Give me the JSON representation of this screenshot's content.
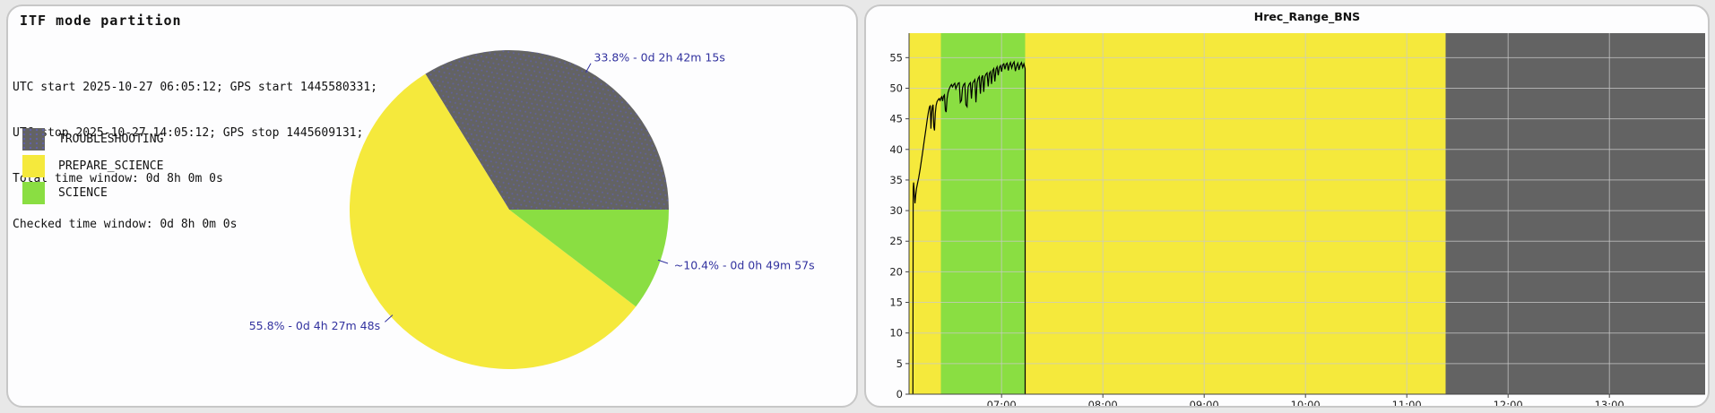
{
  "panels": {
    "left": {
      "title": "ITF mode partition",
      "info_lines": [
        "UTC start 2025-10-27 06:05:12; GPS start 1445580331;",
        "UTC stop 2025-10-27 14:05:12; GPS stop 1445609131;",
        "Total time window: 0d 8h 0m 0s",
        "Checked time window: 0d 8h 0m 0s"
      ]
    },
    "right": {
      "title": "Hrec_Range_BNS"
    }
  },
  "colors": {
    "troubleshooting": "#636363",
    "prepare_science": "#f5e93c",
    "science": "#8ade42",
    "annotation": "#32329f",
    "grid": "rgba(200,200,200,0.75)",
    "line": "#000000"
  },
  "chart_data": [
    {
      "type": "pie",
      "title": "ITF mode partition",
      "start_angle_deg": 0,
      "direction": "counterclockwise",
      "annotation_color": "#32329f",
      "slices": [
        {
          "label": "TROUBLESHOOTING",
          "percent": 33.8,
          "duration": "0d 2h 42m 15s",
          "color": "#636363",
          "hatched": true,
          "annotation": "33.8% - 0d 2h 42m 15s"
        },
        {
          "label": "PREPARE_SCIENCE",
          "percent": 55.8,
          "duration": "0d 4h 27m 48s",
          "color": "#f5e93c",
          "hatched": false,
          "annotation": "55.8% - 0d 4h 27m 48s"
        },
        {
          "label": "SCIENCE",
          "percent": 10.4,
          "duration": "0d 0h 49m 57s",
          "color": "#8ade42",
          "hatched": false,
          "annotation": "~10.4% - 0d 0h 49m 57s"
        }
      ]
    },
    {
      "type": "line",
      "title": "Hrec_Range_BNS",
      "xlabel": "",
      "ylabel": "",
      "xlim_hours": [
        6.0867,
        13.945
      ],
      "ylim": [
        0,
        59
      ],
      "yticks": [
        0,
        5,
        10,
        15,
        20,
        25,
        30,
        35,
        40,
        45,
        50,
        55
      ],
      "xticks": [
        {
          "t": 7,
          "label": "07:00"
        },
        {
          "t": 8,
          "label": "08:00"
        },
        {
          "t": 9,
          "label": "09:00"
        },
        {
          "t": 10,
          "label": "10:00"
        },
        {
          "t": 11,
          "label": "11:00"
        },
        {
          "t": 12,
          "label": "12:00"
        },
        {
          "t": 13,
          "label": "13:00"
        }
      ],
      "grid": true,
      "regions": [
        {
          "mode": "PREPARE_SCIENCE",
          "start": 6.0867,
          "end": 6.401,
          "color": "#f5e93c"
        },
        {
          "mode": "SCIENCE",
          "start": 6.401,
          "end": 7.2325,
          "color": "#8ade42"
        },
        {
          "mode": "PREPARE_SCIENCE",
          "start": 7.2325,
          "end": 11.383,
          "color": "#f5e93c"
        },
        {
          "mode": "TROUBLESHOOTING",
          "start": 11.383,
          "end": 14.0867,
          "color": "#636363"
        }
      ],
      "series": [
        {
          "name": "Hrec_Range_BNS",
          "color": "#000000",
          "points": [
            [
              6.125,
              0
            ],
            [
              6.127,
              33.5
            ],
            [
              6.132,
              34.6
            ],
            [
              6.138,
              33.0
            ],
            [
              6.145,
              31.2
            ],
            [
              6.152,
              32.5
            ],
            [
              6.16,
              33.6
            ],
            [
              6.17,
              34.4
            ],
            [
              6.182,
              35.4
            ],
            [
              6.196,
              36.8
            ],
            [
              6.21,
              38.3
            ],
            [
              6.224,
              39.9
            ],
            [
              6.238,
              41.6
            ],
            [
              6.252,
              43.2
            ],
            [
              6.266,
              44.9
            ],
            [
              6.278,
              46.1
            ],
            [
              6.288,
              46.9
            ],
            [
              6.296,
              47.2
            ],
            [
              6.303,
              43.4
            ],
            [
              6.31,
              45.8
            ],
            [
              6.317,
              47.0
            ],
            [
              6.324,
              47.3
            ],
            [
              6.331,
              43.7
            ],
            [
              6.338,
              43.1
            ],
            [
              6.346,
              45.9
            ],
            [
              6.354,
              47.2
            ],
            [
              6.363,
              47.8
            ],
            [
              6.373,
              48.1
            ],
            [
              6.383,
              48.3
            ],
            [
              6.393,
              48.0
            ],
            [
              6.401,
              48.4
            ],
            [
              6.41,
              48.6
            ],
            [
              6.418,
              47.9
            ],
            [
              6.427,
              48.7
            ],
            [
              6.436,
              48.9
            ],
            [
              6.445,
              46.4
            ],
            [
              6.453,
              46.1
            ],
            [
              6.462,
              48.3
            ],
            [
              6.472,
              49.3
            ],
            [
              6.483,
              49.9
            ],
            [
              6.494,
              50.3
            ],
            [
              6.505,
              50.6
            ],
            [
              6.516,
              50.2
            ],
            [
              6.527,
              50.6
            ],
            [
              6.538,
              50.8
            ],
            [
              6.549,
              49.9
            ],
            [
              6.56,
              50.4
            ],
            [
              6.571,
              50.8
            ],
            [
              6.582,
              50.9
            ],
            [
              6.593,
              47.7
            ],
            [
              6.604,
              48.0
            ],
            [
              6.615,
              50.1
            ],
            [
              6.626,
              50.6
            ],
            [
              6.637,
              50.8
            ],
            [
              6.648,
              47.3
            ],
            [
              6.659,
              47.0
            ],
            [
              6.67,
              50.2
            ],
            [
              6.681,
              50.7
            ],
            [
              6.692,
              50.9
            ],
            [
              6.703,
              48.3
            ],
            [
              6.714,
              50.8
            ],
            [
              6.725,
              51.1
            ],
            [
              6.736,
              51.4
            ],
            [
              6.747,
              47.7
            ],
            [
              6.758,
              50.9
            ],
            [
              6.769,
              51.6
            ],
            [
              6.78,
              51.9
            ],
            [
              6.791,
              49.1
            ],
            [
              6.802,
              51.7
            ],
            [
              6.813,
              52.1
            ],
            [
              6.824,
              49.4
            ],
            [
              6.835,
              51.9
            ],
            [
              6.846,
              52.3
            ],
            [
              6.857,
              52.5
            ],
            [
              6.868,
              50.3
            ],
            [
              6.879,
              52.4
            ],
            [
              6.89,
              52.7
            ],
            [
              6.901,
              50.7
            ],
            [
              6.912,
              52.9
            ],
            [
              6.923,
              53.2
            ],
            [
              6.934,
              51.1
            ],
            [
              6.945,
              53.1
            ],
            [
              6.956,
              53.5
            ],
            [
              6.967,
              52.1
            ],
            [
              6.978,
              53.4
            ],
            [
              6.989,
              53.7
            ],
            [
              7.0,
              52.7
            ],
            [
              7.011,
              53.8
            ],
            [
              7.022,
              54.0
            ],
            [
              7.033,
              53.1
            ],
            [
              7.044,
              53.9
            ],
            [
              7.055,
              54.1
            ],
            [
              7.066,
              52.9
            ],
            [
              7.077,
              53.8
            ],
            [
              7.088,
              54.2
            ],
            [
              7.1,
              53.3
            ],
            [
              7.112,
              54.0
            ],
            [
              7.124,
              54.3
            ],
            [
              7.136,
              52.8
            ],
            [
              7.148,
              53.6
            ],
            [
              7.16,
              54.1
            ],
            [
              7.172,
              53.0
            ],
            [
              7.184,
              53.8
            ],
            [
              7.196,
              54.2
            ],
            [
              7.208,
              53.4
            ],
            [
              7.22,
              54.0
            ],
            [
              7.2325,
              53.2
            ],
            [
              7.2325,
              0
            ]
          ]
        }
      ]
    }
  ]
}
